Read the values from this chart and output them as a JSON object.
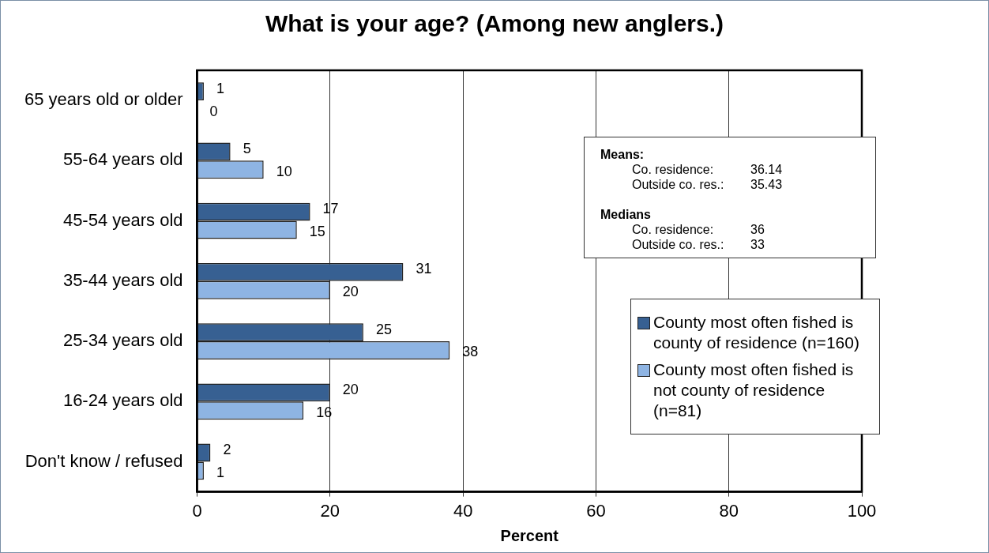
{
  "chart_data": {
    "type": "bar",
    "orientation": "horizontal",
    "title": "What is your age? (Among new anglers.)",
    "xlabel": "Percent",
    "categories": [
      "65 years old or older",
      "55-64 years old",
      "45-54 years old",
      "35-44 years old",
      "25-34 years old",
      "16-24 years old",
      "Don't know / refused"
    ],
    "series": [
      {
        "name": "County most often fished is county of residence (n=160)",
        "color": "#376092",
        "values": [
          1,
          5,
          17,
          31,
          25,
          20,
          2
        ]
      },
      {
        "name": "County most often fished is not county of residence (n=81)",
        "color": "#8eb4e3",
        "values": [
          0,
          10,
          15,
          20,
          38,
          16,
          1
        ]
      }
    ],
    "xlim": [
      0,
      100
    ],
    "xticks": [
      0,
      20,
      40,
      60,
      80,
      100
    ],
    "grid": "x",
    "legend": "right",
    "data_labels": true,
    "annotations": [
      "Means:",
      "Co. residence:\t36.14",
      "Outside co. res.:\t35.43",
      "Medians",
      "Co. residence:\t36",
      "Outside co. res.:\t33"
    ]
  }
}
